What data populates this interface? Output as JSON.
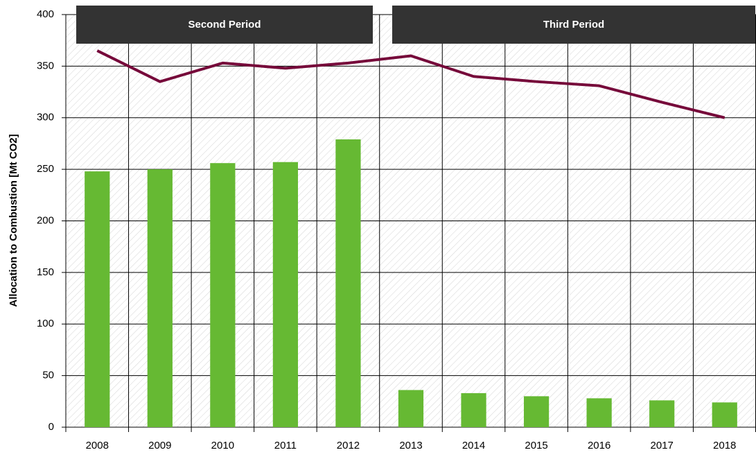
{
  "chart_data": {
    "type": "bar",
    "y_label": "Allocation to Combustion [Mt CO2]",
    "annotations": [
      "Second Period",
      "Third Period"
    ],
    "categories": [
      "2008",
      "2009",
      "2010",
      "2011",
      "2012",
      "2013",
      "2014",
      "2015",
      "2016",
      "2017",
      "2018"
    ],
    "series": [
      {
        "type": "bar",
        "color": "#66b933",
        "values": [
          248,
          250,
          256,
          257,
          279,
          36,
          33,
          30,
          28,
          26,
          24
        ]
      },
      {
        "type": "line",
        "color": "#76093a",
        "values": [
          365,
          335,
          353,
          348,
          353,
          360,
          340,
          335,
          331,
          315,
          300
        ]
      }
    ],
    "ylim": [
      0,
      400
    ],
    "yticks": [
      0,
      50,
      100,
      150,
      200,
      250,
      300,
      350,
      400
    ],
    "grid": true
  }
}
